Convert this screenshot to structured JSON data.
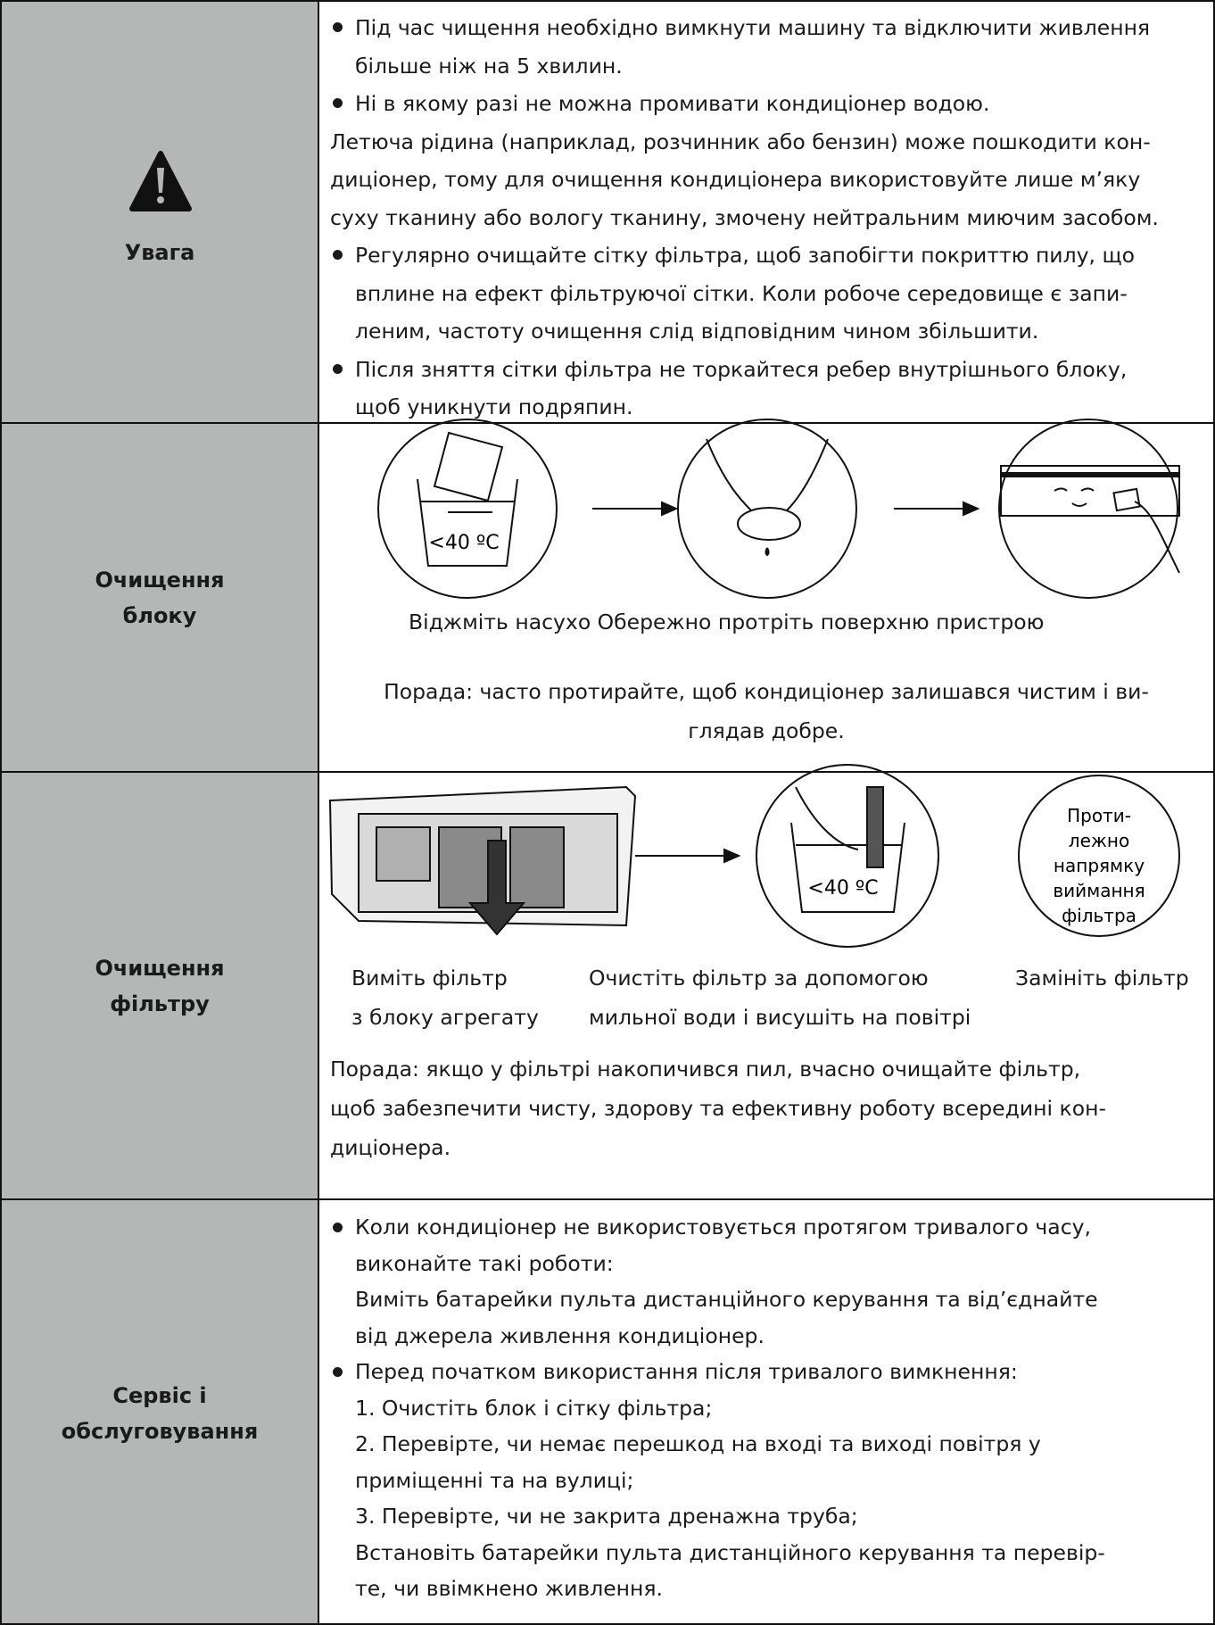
{
  "rows": [
    {
      "label": [
        "Увага"
      ],
      "blocks": [
        {
          "bullet": true,
          "lines": [
            "Під час чищення необхідно вимкнути машину та відключити живлення",
            "більше ніж на 5 хвилин."
          ]
        },
        {
          "bullet": true,
          "lines": [
            "Ні в якому разі не можна промивати кондиціонер водою."
          ]
        },
        {
          "bullet": false,
          "lines": [
            "Летюча рідина (наприклад, розчинник або бензин) може пошкодити кон-",
            "диціонер, тому для очищення кондиціонера використовуйте лише м’яку",
            "суху тканину або вологу тканину, змочену нейтральним миючим засобом."
          ]
        },
        {
          "bullet": true,
          "lines": [
            "Регулярно очищайте сітку фільтра, щоб запобігти покриттю пилу, що",
            "вплине на ефект фільтруючої сітки. Коли робоче середовище є запи-",
            "леним, частоту очищення слід відповідним чином збільшити."
          ]
        },
        {
          "bullet": true,
          "lines": [
            "Після зняття сітки фільтра не торкайтеся ребер внутрішнього блоку,",
            "щоб уникнути подряпин."
          ]
        }
      ]
    },
    {
      "label": [
        "Очищення",
        "блоку"
      ],
      "temperature": "<40 ºC",
      "caption": "Віджміть насухо Обережно протріть поверхню пристрою",
      "tip": [
        "Порада: часто протирайте, щоб кондиціонер залишався чистим і ви-",
        "глядав добре."
      ]
    },
    {
      "label": [
        "Очищення",
        "фільтру"
      ],
      "temperature": "<40 ºC",
      "circle_note": [
        "Проти-",
        "лежно",
        "напрямку",
        "виймання",
        "фільтра"
      ],
      "captions": [
        [
          "Виміть фільтр",
          "з блоку агрегату"
        ],
        [
          "Очистіть фільтр за допомогою",
          "мильної води і висушіть на повітрі"
        ],
        [
          "Замініть фільтр"
        ]
      ],
      "tip": [
        "Порада: якщо у фільтрі накопичився пил, вчасно очищайте фільтр,",
        "щоб забезпечити чисту, здорову та ефективну роботу всередині кон-",
        "диціонера."
      ]
    },
    {
      "label": [
        "Сервіс і",
        "обслуговування"
      ],
      "blocks": [
        {
          "bullet": true,
          "lines": [
            "Коли кондиціонер не використовується протягом тривалого часу,",
            "виконайте такі роботи:",
            "Виміть батарейки пульта дистанційного керування та від’єднайте",
            "від джерела живлення кондиціонер."
          ]
        },
        {
          "bullet": true,
          "lines": [
            "Перед початком використання після тривалого вимкнення:",
            "1. Очистіть блок і сітку фільтра;",
            "2. Перевірте, чи немає перешкод на вході та виході повітря у",
            "приміщенні та на вулиці;",
            "3. Перевірте, чи не закрита дренажна труба;",
            "Встановіть батарейки пульта дистанційного керування та перевір-",
            "те, чи ввімкнено живлення."
          ]
        }
      ]
    }
  ]
}
